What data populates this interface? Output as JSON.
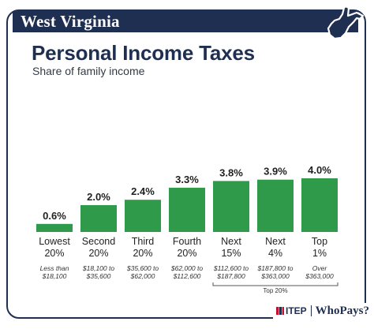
{
  "header": {
    "state": "West Virginia",
    "state_icon": "west-virginia-map-icon"
  },
  "logo": {
    "org": "ITEP",
    "brand": "WhoPays?"
  },
  "colors": {
    "navy": "#1f2f52",
    "bar": "#2e9a4a",
    "text": "#222222"
  },
  "chart_data": {
    "type": "bar",
    "title": "Personal Income Taxes",
    "subtitle": "Share of family income",
    "categories": [
      {
        "label1": "Lowest",
        "label2": "20%",
        "range1": "Less than",
        "range2": "$18,100"
      },
      {
        "label1": "Second",
        "label2": "20%",
        "range1": "$18,100 to",
        "range2": "$35,600"
      },
      {
        "label1": "Third",
        "label2": "20%",
        "range1": "$35,600 to",
        "range2": "$62,000"
      },
      {
        "label1": "Fourth",
        "label2": "20%",
        "range1": "$62,000 to",
        "range2": "$112,600"
      },
      {
        "label1": "Next",
        "label2": "15%",
        "range1": "$112,600 to",
        "range2": "$187,800"
      },
      {
        "label1": "Next",
        "label2": "4%",
        "range1": "$187,800 to",
        "range2": "$363,000"
      },
      {
        "label1": "Top",
        "label2": "1%",
        "range1": "Over",
        "range2": "$363,000"
      }
    ],
    "values": [
      0.6,
      2.0,
      2.4,
      3.3,
      3.8,
      3.9,
      4.0
    ],
    "value_labels": [
      "0.6%",
      "2.0%",
      "2.4%",
      "3.3%",
      "3.8%",
      "3.9%",
      "4.0%"
    ],
    "ylim": [
      0,
      4.0
    ],
    "grid": false,
    "legend": "none",
    "bracket": {
      "label": "Top 20%",
      "from": 4,
      "to": 6
    }
  }
}
